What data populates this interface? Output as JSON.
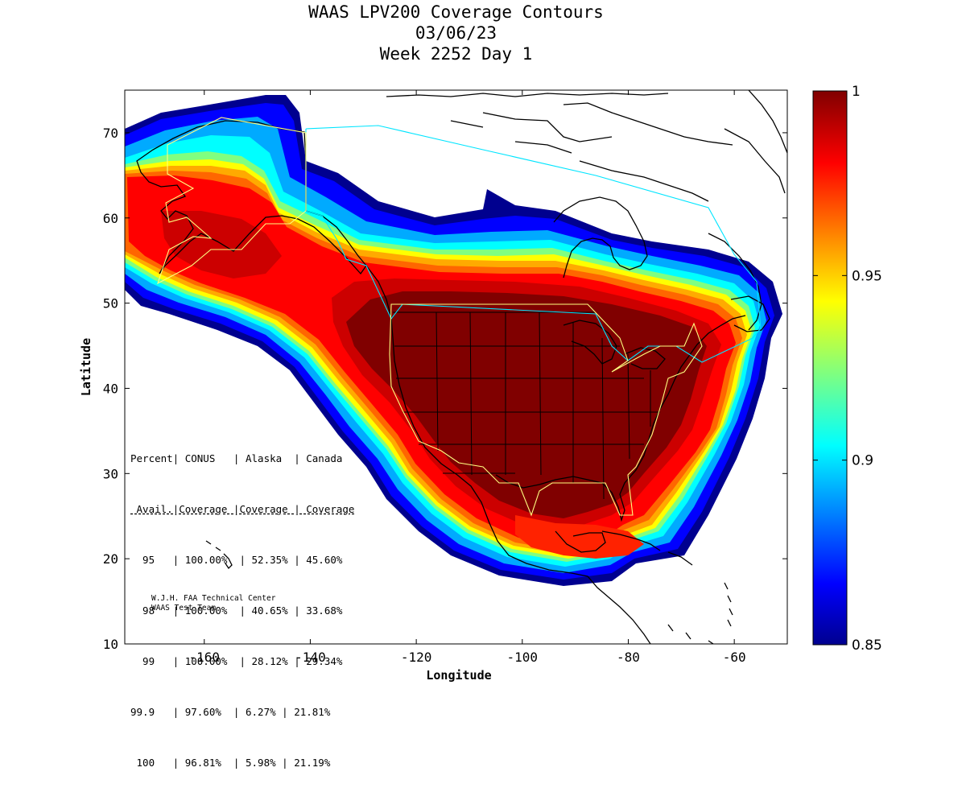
{
  "header": {
    "title": "WAAS LPV200 Coverage Contours",
    "date": "03/06/23",
    "week_day": "Week 2252 Day 1"
  },
  "axes": {
    "xlabel": "Longitude",
    "ylabel": "Latitude",
    "xticks": [
      "-160",
      "-140",
      "-120",
      "-100",
      "-80",
      "-60"
    ],
    "yticks": [
      "70",
      "60",
      "50",
      "40",
      "30",
      "20",
      "10"
    ],
    "xlim": [
      -175,
      -50
    ],
    "ylim": [
      10,
      75
    ]
  },
  "colorbar": {
    "ticks": [
      "1",
      "0.95",
      "0.9",
      "0.85"
    ],
    "range": [
      0.85,
      1
    ],
    "colormap": "jet"
  },
  "colors": {
    "max": "#800000",
    "red": "#ff0000",
    "orange": "#ff8000",
    "yellow": "#ffff00",
    "cyan": "#00ffff",
    "blue": "#0000ff",
    "min": "#00008f",
    "boundary_conus": "#ffff80",
    "boundary_canada": "#00e5ff"
  },
  "stats_table": {
    "header1": "Percent| CONUS   | Alaska  | Canada",
    "header2": " Avail.|Coverage |Coverage | Coverage",
    "rows": [
      "  95   | 100.00%  | 52.35% | 45.60%",
      "  98   | 100.00%  | 40.65% | 33.68%",
      "  99   | 100.00%  | 28.12% | 29.34%",
      "99.9   | 97.60%  | 6.27% | 21.81%",
      " 100   | 96.81%  | 5.98% | 21.19%"
    ]
  },
  "credit": {
    "line1": "W.J.H. FAA Technical Center",
    "line2": "WAAS Test Team"
  }
}
